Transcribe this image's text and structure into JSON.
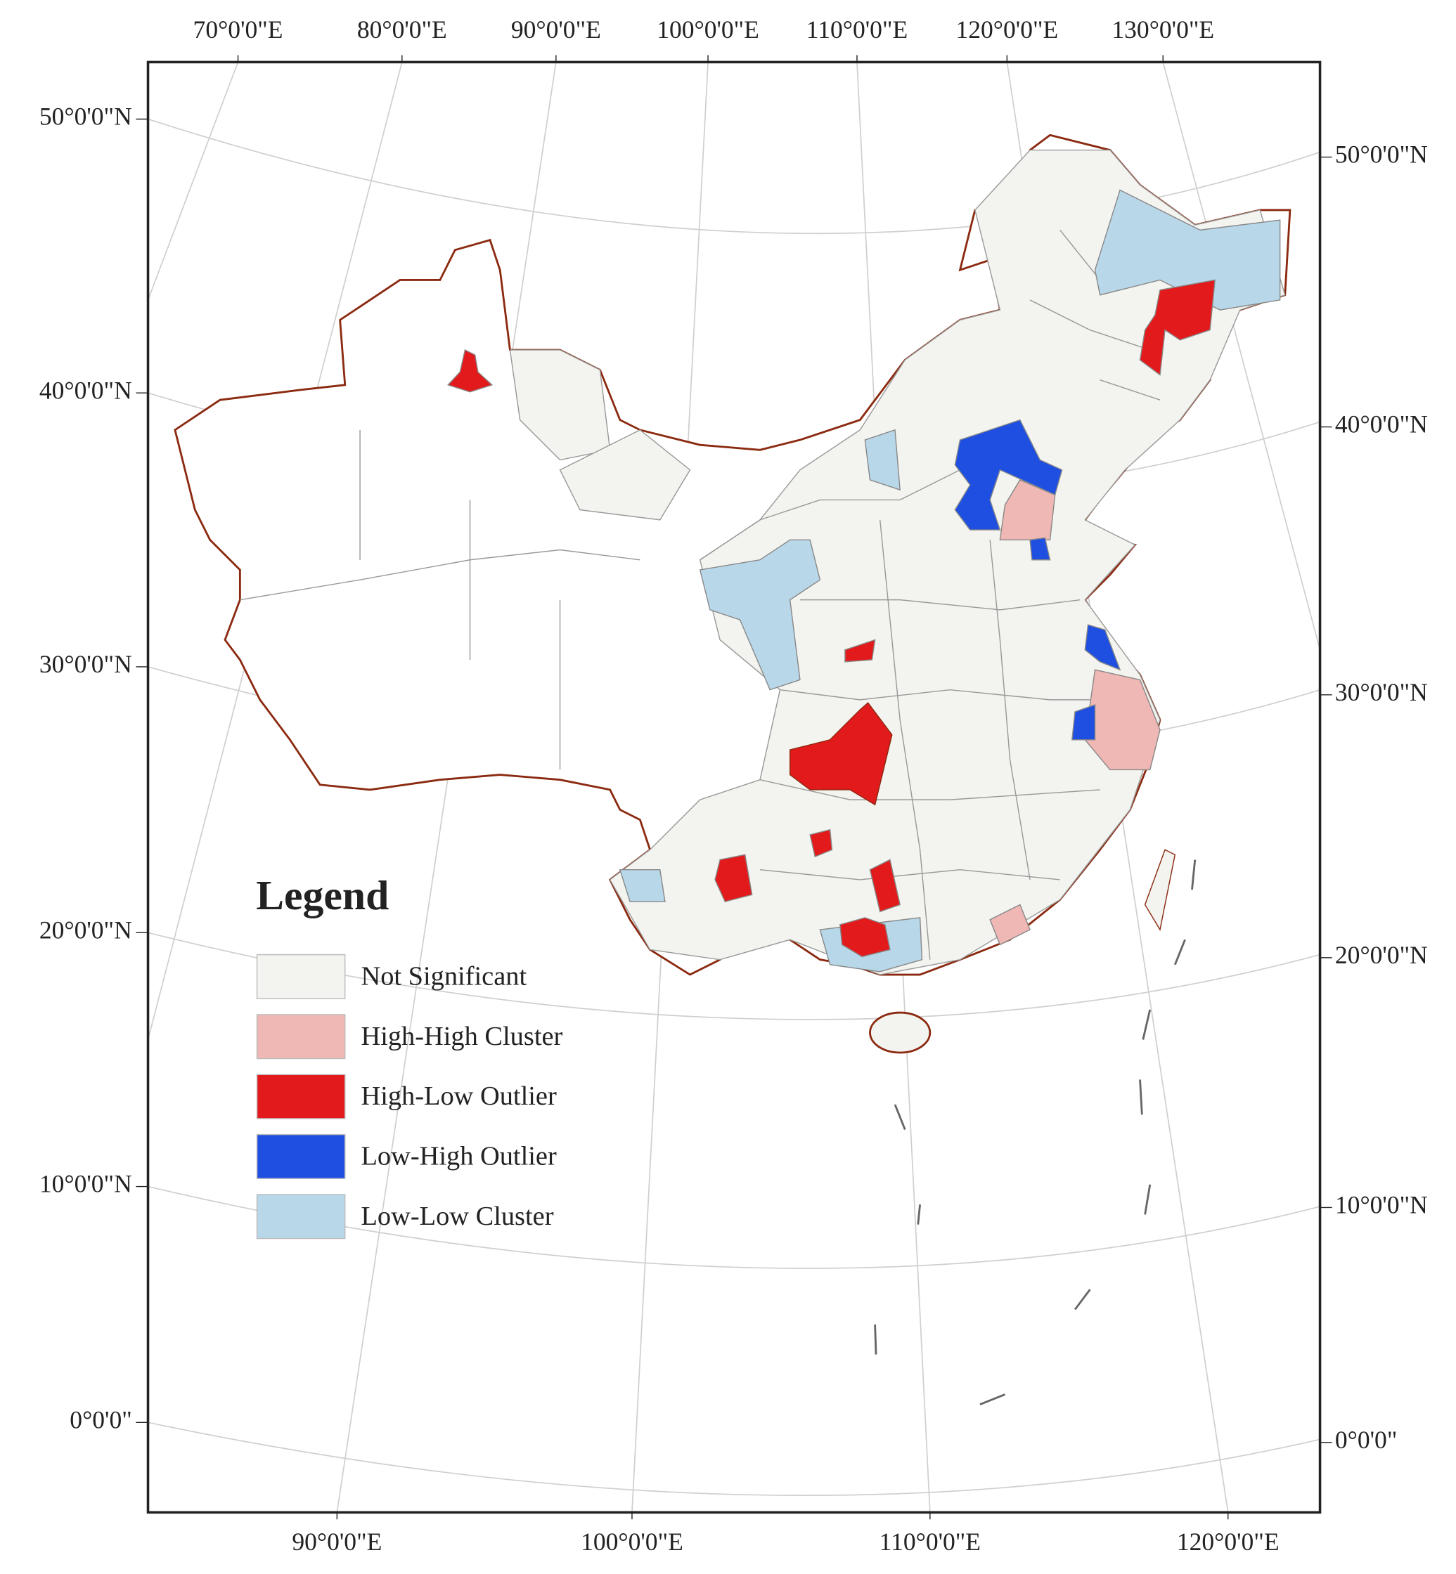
{
  "map": {
    "top_labels": [
      "70°0'0\"E",
      "80°0'0\"E",
      "90°0'0\"E",
      "100°0'0\"E",
      "110°0'0\"E",
      "120°0'0\"E",
      "130°0'0\"E"
    ],
    "bottom_labels": [
      "90°0'0\"E",
      "100°0'0\"E",
      "110°0'0\"E",
      "120°0'0\"E"
    ],
    "left_labels": [
      "50°0'0\"N",
      "40°0'0\"N",
      "30°0'0\"N",
      "20°0'0\"N",
      "10°0'0\"N",
      "0°0'0\""
    ],
    "right_labels": [
      "50°0'0\"N",
      "40°0'0\"N",
      "30°0'0\"N",
      "20°0'0\"N",
      "10°0'0\"N",
      "0°0'0\""
    ],
    "legend": {
      "title": "Legend",
      "items": [
        {
          "label": "Not Significant",
          "color": "#f3f3ef"
        },
        {
          "label": "High-High Cluster",
          "color": "#f0b8b4"
        },
        {
          "label": "High-Low Outlier",
          "color": "#e31a1c"
        },
        {
          "label": "Low-High Outlier",
          "color": "#1f4fe0"
        },
        {
          "label": "Low-Low Cluster",
          "color": "#b8d8ea"
        }
      ]
    }
  }
}
